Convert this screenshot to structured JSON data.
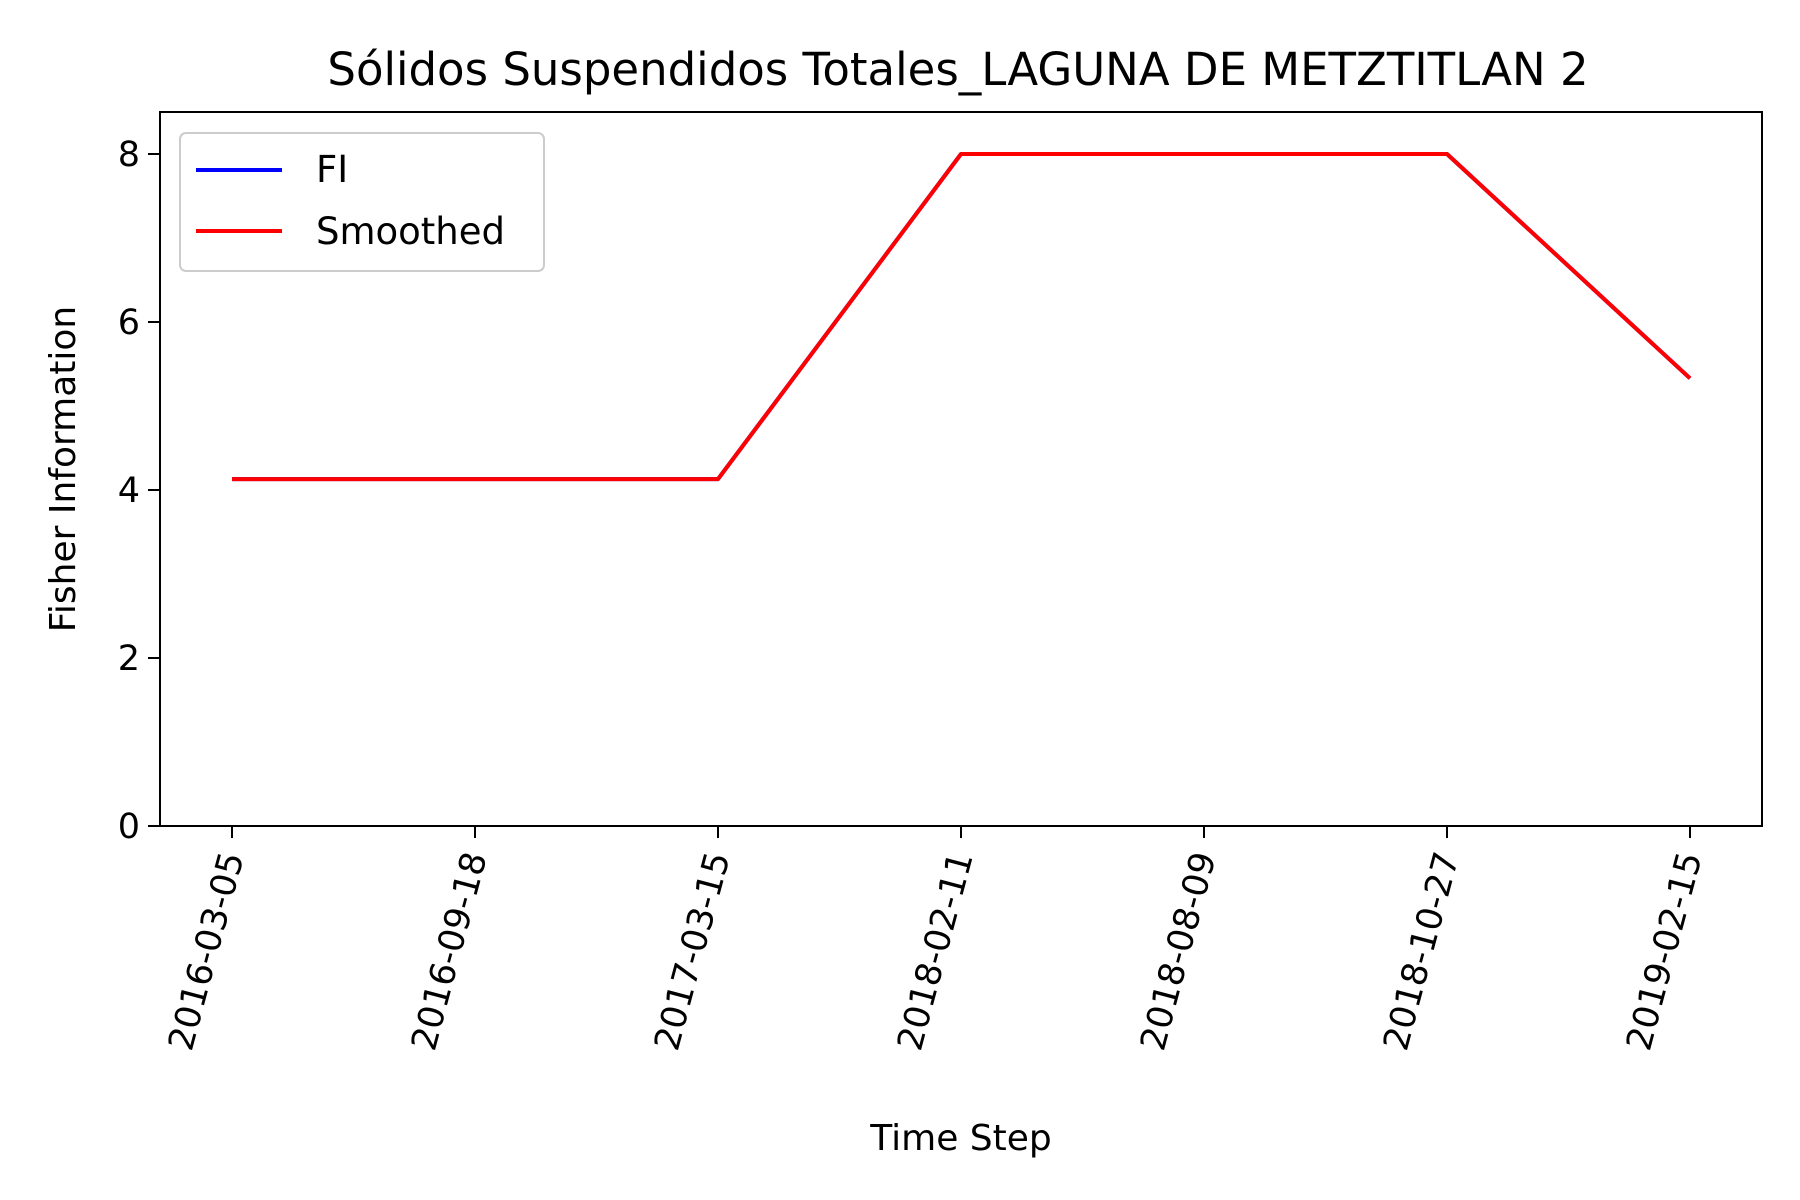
{
  "chart_data": {
    "type": "line",
    "title": "Sólidos Suspendidos Totales_LAGUNA DE METZTITLAN 2",
    "xlabel": "Time Step",
    "ylabel": "Fisher Information",
    "x_tick_labels": [
      "2016-03-05",
      "2016-09-18",
      "2017-03-15",
      "2018-02-11",
      "2018-08-09",
      "2018-10-27",
      "2019-02-15"
    ],
    "ylim": [
      0,
      8.5
    ],
    "y_ticks": [
      0,
      2,
      4,
      6,
      8
    ],
    "legend_placement": "upper-left",
    "grid": false,
    "series": [
      {
        "name": "FI",
        "color": "#0000ff",
        "values": [
          4.13,
          4.13,
          4.13,
          8.0,
          8.0,
          8.0,
          5.33
        ]
      },
      {
        "name": "Smoothed",
        "color": "#ff0000",
        "values": [
          4.13,
          4.13,
          4.13,
          8.0,
          8.0,
          8.0,
          5.33
        ]
      }
    ]
  }
}
